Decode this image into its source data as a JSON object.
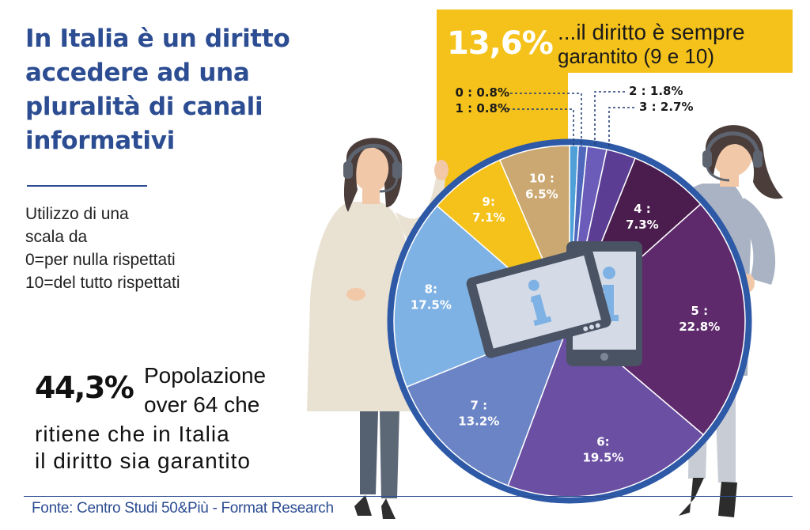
{
  "header": {
    "title": "In Italia è un diritto accedere ad una pluralità di canali informativi",
    "subtitle_lines": [
      "Utilizzo di una",
      "scala da",
      "0=per nulla rispettati",
      "10=del tutto rispettati"
    ]
  },
  "highlight": {
    "value": "44,3%",
    "lines": [
      "Popolazione",
      "over 64 che",
      "ritiene che in Italia",
      "il diritto sia garantito"
    ]
  },
  "callout": {
    "value": "13,6%",
    "line1": "...il diritto è sempre",
    "line2": "garantito (9 e 10)"
  },
  "source": "Fonte: Centro Studi 50&Più - Format Research",
  "chart_data": {
    "type": "pie",
    "title": "",
    "slices": [
      {
        "label": "0",
        "value": 0.8,
        "text": "0 : 0.8%",
        "color": "#4f9fd8"
      },
      {
        "label": "1",
        "value": 0.8,
        "text": "1 : 0.8%",
        "color": "#4f67bd"
      },
      {
        "label": "2",
        "value": 1.8,
        "text": "2 : 1.8%",
        "color": "#6a5cb8"
      },
      {
        "label": "3",
        "value": 2.7,
        "text": "3 : 2.7%",
        "color": "#5b3e94"
      },
      {
        "label": "4",
        "value": 7.3,
        "text": "4 : 7.3%",
        "color": "#4b1d4e"
      },
      {
        "label": "5",
        "value": 22.8,
        "text": "5 : 22.8%",
        "color": "#5e2a6c"
      },
      {
        "label": "6",
        "value": 19.5,
        "text": "6: 19.5%",
        "color": "#6b4fa3"
      },
      {
        "label": "7",
        "value": 13.2,
        "text": "7 : 13.2%",
        "color": "#6b84c6"
      },
      {
        "label": "8",
        "value": 17.5,
        "text": "8: 17.5%",
        "color": "#7fb2e4"
      },
      {
        "label": "9",
        "value": 7.1,
        "text": "9: 7.1%",
        "color": "#f5c21b"
      },
      {
        "label": "10",
        "value": 6.5,
        "text": "10 : 6.5%",
        "color": "#cba872"
      }
    ],
    "highlight_range": "9 e 10",
    "highlight_color": "#f5c21b",
    "border_color": "#2e59a6"
  },
  "colors": {
    "title": "#2c4d92",
    "callout_bg": "#f5c21b",
    "callout_text_light": "#ffffff",
    "callout_text_dark": "#1a1a1a"
  },
  "icons": [
    "headset-icon",
    "info-icon",
    "tablet-icon",
    "smartphone-icon"
  ]
}
